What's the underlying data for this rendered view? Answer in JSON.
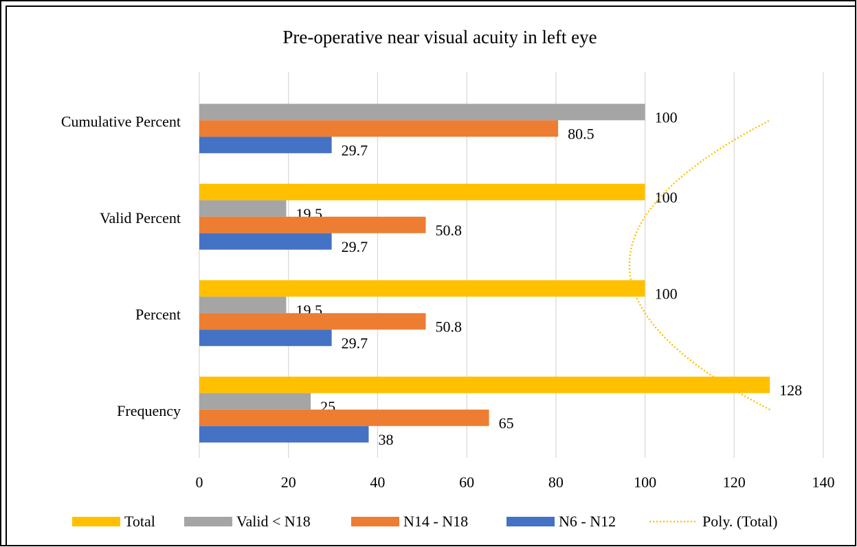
{
  "chart_data": {
    "type": "bar",
    "orientation": "horizontal",
    "title": "Pre-operative near visual acuity in left eye",
    "categories": [
      "Frequency",
      "Percent",
      "Valid Percent",
      "Cumulative Percent"
    ],
    "series": [
      {
        "name": "Total",
        "color": "#FFC000",
        "values": [
          128,
          100,
          100,
          null
        ]
      },
      {
        "name": "Valid < N18",
        "color": "#A5A5A5",
        "values": [
          25,
          19.5,
          19.5,
          100
        ]
      },
      {
        "name": "N14 - N18",
        "color": "#ED7D31",
        "values": [
          65,
          50.8,
          50.8,
          80.5
        ]
      },
      {
        "name": "N6 - N12",
        "color": "#4472C4",
        "values": [
          38,
          29.7,
          29.7,
          29.7
        ]
      }
    ],
    "trendline": {
      "name": "Poly. (Total)",
      "series": 0,
      "order": 2,
      "color": "#FFC000"
    },
    "xlim": [
      0,
      140
    ],
    "xticks": [
      0,
      20,
      40,
      60,
      80,
      100,
      120,
      140
    ],
    "grid": true,
    "legend": "bottom"
  }
}
